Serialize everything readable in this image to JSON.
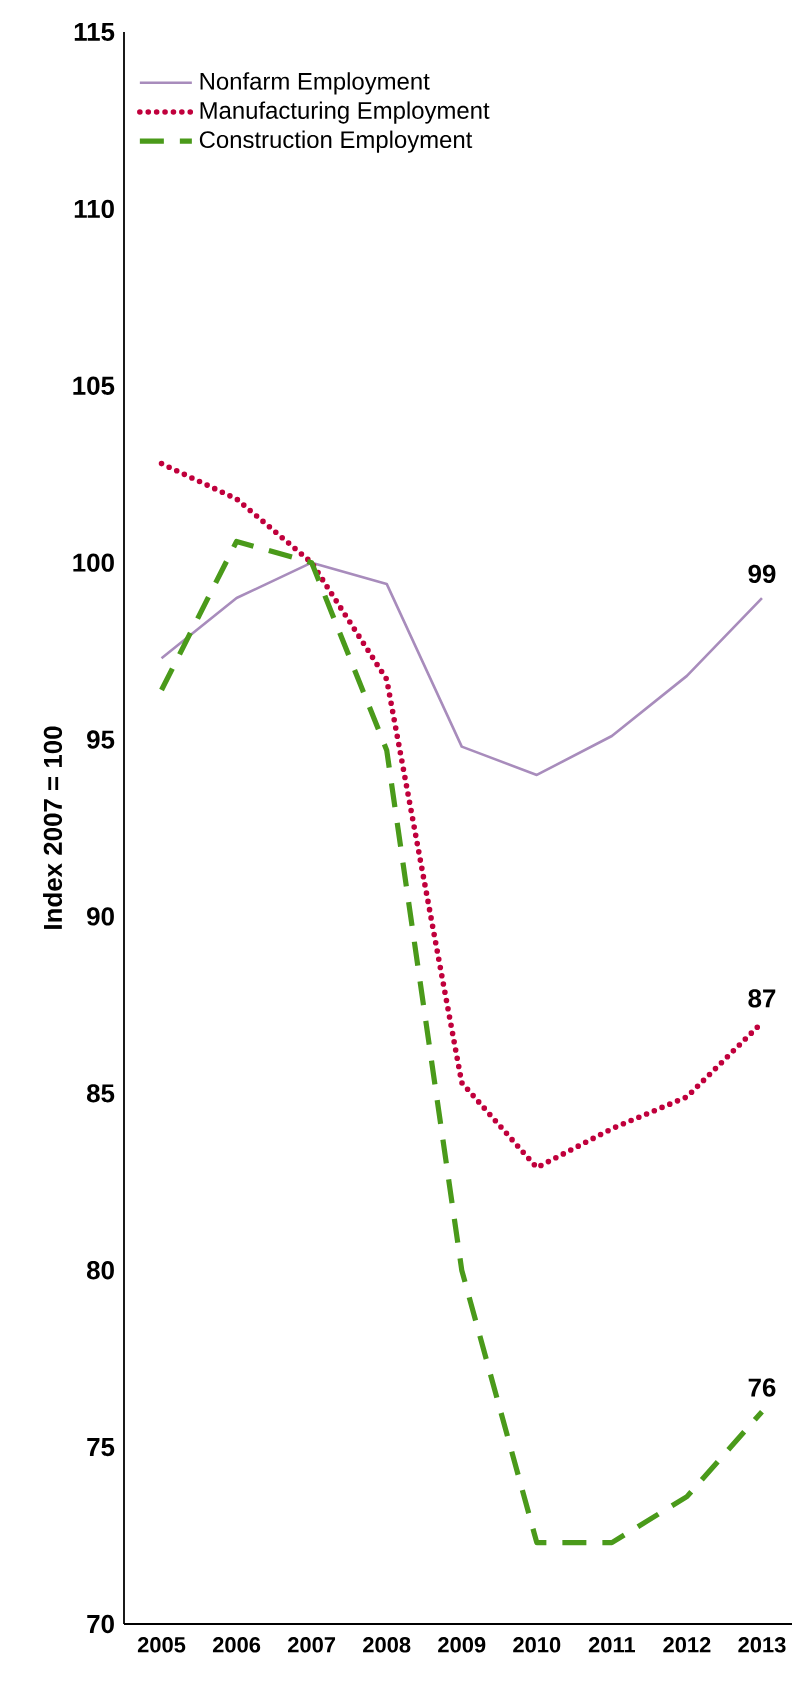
{
  "chart_data": {
    "type": "line",
    "ylabel": "Index 2007 = 100",
    "x": [
      2005,
      2006,
      2007,
      2008,
      2009,
      2010,
      2011,
      2012,
      2013
    ],
    "series": [
      {
        "name": "Nonfarm Employment",
        "color": "#a88cbc",
        "line_style": "solid",
        "values": [
          97.3,
          99,
          100,
          99.4,
          94.8,
          94,
          95.1,
          96.8,
          99
        ],
        "value_labels": [
          null,
          null,
          null,
          null,
          null,
          null,
          null,
          null,
          "99"
        ]
      },
      {
        "name": "Manufacturing Employment",
        "color": "#c0003c",
        "line_style": "dotted",
        "values": [
          102.8,
          101.8,
          100,
          96.7,
          85.3,
          82.9,
          84,
          84.9,
          87
        ],
        "value_labels": [
          null,
          null,
          null,
          null,
          null,
          null,
          null,
          null,
          "87"
        ]
      },
      {
        "name": "Construction Employment",
        "color": "#4a9a1a",
        "line_style": "dashed",
        "values": [
          96.4,
          100.6,
          100,
          94.7,
          80,
          72.3,
          72.3,
          73.6,
          76
        ],
        "value_labels": [
          null,
          null,
          null,
          null,
          null,
          null,
          null,
          null,
          "76"
        ]
      }
    ],
    "xlim": [
      2004.5,
      2013.4
    ],
    "xticks": [
      2005,
      2006,
      2007,
      2008,
      2009,
      2010,
      2011,
      2012,
      2013
    ],
    "ylim": [
      70,
      115
    ],
    "yticks": [
      70,
      75,
      80,
      85,
      90,
      95,
      100,
      105,
      110,
      115
    ],
    "legend": "top left"
  }
}
